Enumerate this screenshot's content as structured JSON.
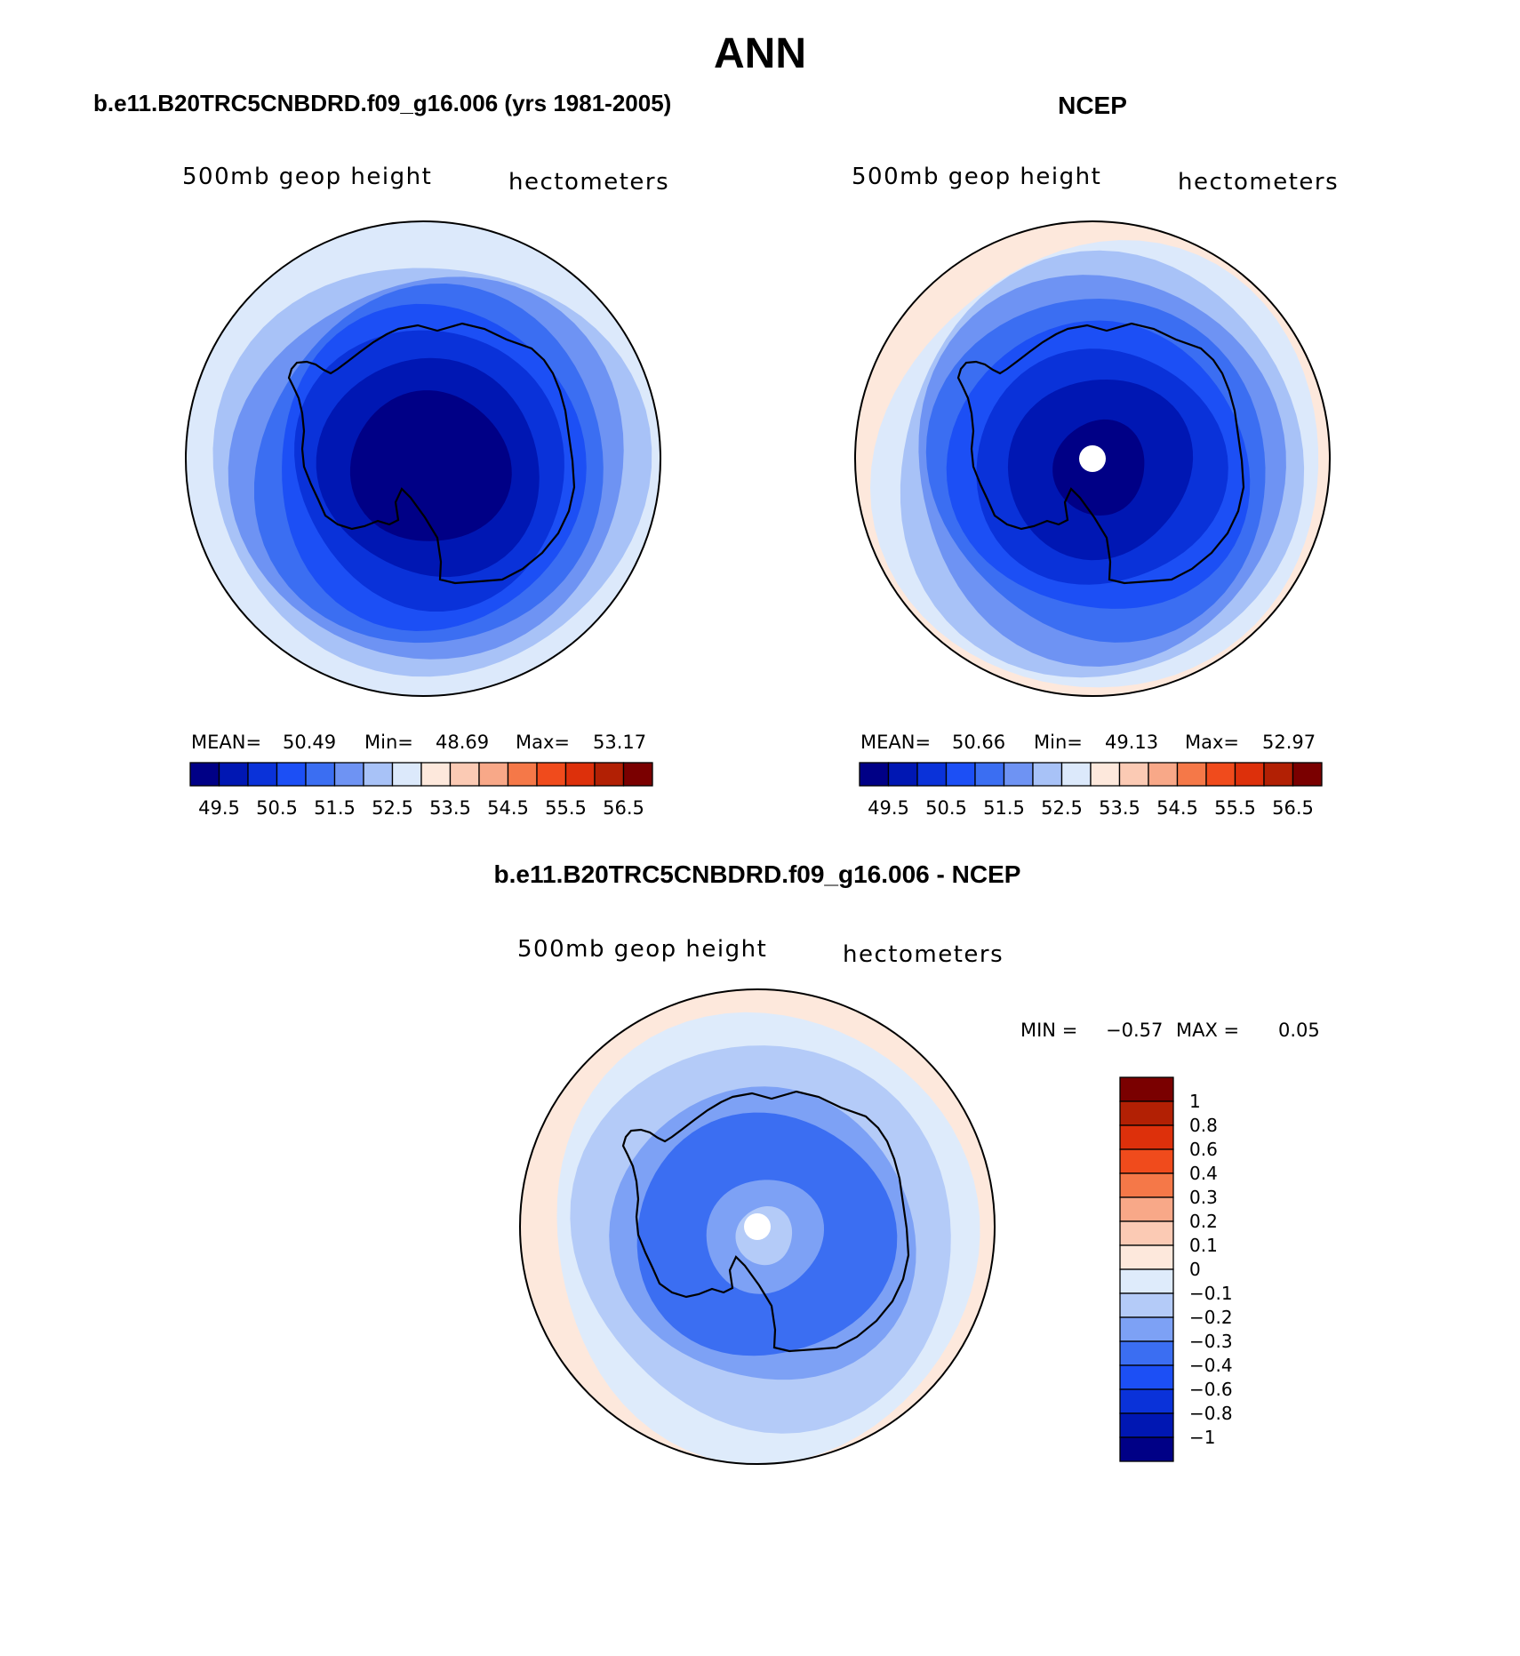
{
  "title": "ANN",
  "colors": {
    "base": [
      "#000086",
      "#0017b3",
      "#0a32d9",
      "#1c4ff5",
      "#3b6ef2",
      "#6e93f3",
      "#a8c2f7",
      "#dce9fb",
      "#fde8dc",
      "#fbcab4",
      "#f8a888",
      "#f57848",
      "#f04b1c",
      "#dd300b",
      "#b22004",
      "#7a0000"
    ],
    "diff": [
      "#000086",
      "#0017b3",
      "#0a32d9",
      "#1c4ff5",
      "#3b6ef2",
      "#7da1f5",
      "#b4cbf8",
      "#deebfb",
      "#fde8dc",
      "#fbcab4",
      "#f8a888",
      "#f57848",
      "#f04b1c",
      "#dd300b",
      "#b22004",
      "#7a0000"
    ],
    "land": "#000000"
  },
  "panels": [
    {
      "heading": "b.e11.B20TRC5CNBDRD.f09_g16.006 (yrs 1981-2005)",
      "variable": "500mb geop height",
      "units": "hectometers",
      "stats": {
        "mean_label": "MEAN=",
        "mean": "50.49",
        "min_label": "Min=",
        "min": "48.69",
        "max_label": "Max=",
        "max": "53.17"
      },
      "field": [
        {
          "level": 7,
          "lat": -32.0
        },
        {
          "level": 6,
          "lat": -35.5
        },
        {
          "level": 5,
          "lat": -39.5
        },
        {
          "level": 4,
          "lat": -43.5
        },
        {
          "level": 3,
          "lat": -48.0
        },
        {
          "level": 2,
          "lat": -53.0
        },
        {
          "level": 1,
          "lat": -60.0
        },
        {
          "level": 0,
          "lat": -68.5
        }
      ]
    },
    {
      "heading": "NCEP",
      "variable": "500mb geop height",
      "units": "hectometers",
      "stats": {
        "mean_label": "MEAN=",
        "mean": "50.66",
        "min_label": "Min=",
        "min": "49.13",
        "max_label": "Max=",
        "max": "52.97"
      },
      "field": [
        {
          "level": 8,
          "lat": -31.0
        },
        {
          "level": 7,
          "lat": -33.0
        },
        {
          "level": 6,
          "lat": -36.5
        },
        {
          "level": 5,
          "lat": -40.5
        },
        {
          "level": 4,
          "lat": -45.0
        },
        {
          "level": 3,
          "lat": -50.5
        },
        {
          "level": 2,
          "lat": -57.0
        },
        {
          "level": 1,
          "lat": -65.0
        },
        {
          "level": 0,
          "lat": -77.0
        }
      ]
    }
  ],
  "base_colorbar": {
    "labels": [
      "49.5",
      "50.5",
      "51.5",
      "52.5",
      "53.5",
      "54.5",
      "55.5",
      "56.5"
    ]
  },
  "diff_panel": {
    "heading": "b.e11.B20TRC5CNBDRD.f09_g16.006 - NCEP",
    "variable": "500mb geop height",
    "units": "hectometers",
    "min_label": "MIN =",
    "min": "−0.57",
    "max_label": "MAX =",
    "max": "0.05",
    "field": [
      {
        "level": 8,
        "lat": -31.0
      },
      {
        "level": 7,
        "lat": -34.0
      },
      {
        "level": 6,
        "lat": -40.0
      },
      {
        "level": 5,
        "lat": -50.0
      },
      {
        "level": 4,
        "lat": -56.0
      },
      {
        "level": 5,
        "lat": -74.0
      },
      {
        "level": 6,
        "lat": -82.0
      }
    ],
    "colorbar_labels": [
      "1",
      "0.8",
      "0.6",
      "0.4",
      "0.3",
      "0.2",
      "0.1",
      "0",
      "−0.1",
      "−0.2",
      "−0.3",
      "−0.4",
      "−0.6",
      "−0.8",
      "−1"
    ]
  }
}
